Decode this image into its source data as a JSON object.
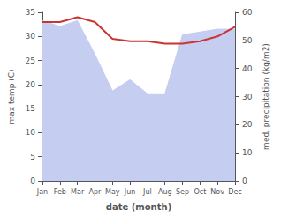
{
  "chart_data": {
    "type": "line",
    "xlabel": "date (month)",
    "ylabel": "max temp (C)",
    "y2label": "med. precipitation (kg/m2)",
    "categories": [
      "Jan",
      "Feb",
      "Mar",
      "Apr",
      "May",
      "Jun",
      "Jul",
      "Aug",
      "Sep",
      "Oct",
      "Nov",
      "Dec"
    ],
    "series": [
      {
        "type": "line",
        "color": "#cc3333",
        "values": [
          33.0,
          33.0,
          34.0,
          33.0,
          29.5,
          29.0,
          29.0,
          28.5,
          28.5,
          29.0,
          30.0,
          32.0
        ]
      },
      {
        "type": "area",
        "axis": "y2",
        "color": "#c5cdf0",
        "values": [
          57,
          55,
          57,
          45,
          32,
          36,
          31,
          31,
          52,
          53,
          54,
          54
        ]
      }
    ],
    "ylim": [
      0,
      35
    ],
    "yticks": [
      0,
      5,
      10,
      15,
      20,
      25,
      30,
      35
    ],
    "y2lim": [
      0,
      60
    ],
    "y2ticks": [
      0,
      10,
      20,
      30,
      40,
      50,
      60
    ],
    "grid": false
  }
}
